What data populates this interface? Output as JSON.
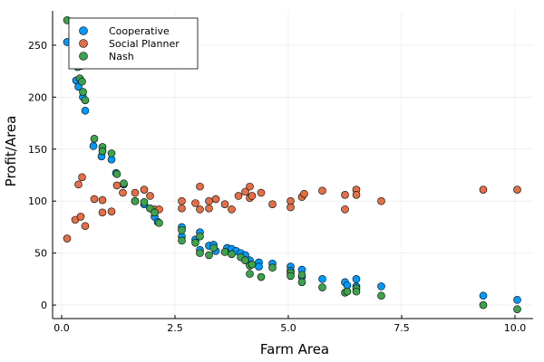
{
  "chart_data": {
    "type": "scatter",
    "title": "",
    "xlabel": "Farm Area",
    "ylabel": "Profit/Area",
    "xlim": [
      -0.2,
      10.4
    ],
    "ylim": [
      -13,
      283
    ],
    "x_ticks": [
      0,
      2.5,
      5,
      7.5,
      10
    ],
    "x_tick_labels": [
      "0.0",
      "2.5",
      "5.0",
      "7.5",
      "10.0"
    ],
    "y_ticks": [
      0,
      50,
      100,
      150,
      200,
      250
    ],
    "y_tick_labels": [
      "0",
      "50",
      "100",
      "150",
      "200",
      "250"
    ],
    "grid": true,
    "legend_position": "top-left",
    "series": [
      {
        "name": "Cooperative",
        "color": "#009AFA",
        "points": [
          [
            0.12,
            253
          ],
          [
            0.32,
            216
          ],
          [
            0.37,
            210
          ],
          [
            0.42,
            230
          ],
          [
            0.47,
            200
          ],
          [
            0.52,
            187
          ],
          [
            0.7,
            153
          ],
          [
            0.88,
            143
          ],
          [
            1.1,
            140
          ],
          [
            1.2,
            127
          ],
          [
            1.37,
            116
          ],
          [
            1.62,
            100
          ],
          [
            1.82,
            97
          ],
          [
            1.95,
            93
          ],
          [
            2.05,
            85
          ],
          [
            2.12,
            80
          ],
          [
            2.65,
            75
          ],
          [
            2.65,
            66
          ],
          [
            2.95,
            63
          ],
          [
            3.05,
            70
          ],
          [
            3.05,
            53
          ],
          [
            3.25,
            57
          ],
          [
            3.35,
            58
          ],
          [
            3.4,
            52
          ],
          [
            3.65,
            55
          ],
          [
            3.75,
            54
          ],
          [
            3.85,
            52
          ],
          [
            3.95,
            50
          ],
          [
            4.05,
            48
          ],
          [
            4.15,
            43
          ],
          [
            4.35,
            41
          ],
          [
            4.35,
            37
          ],
          [
            4.65,
            40
          ],
          [
            5.05,
            37
          ],
          [
            5.05,
            33
          ],
          [
            5.3,
            34
          ],
          [
            5.3,
            27
          ],
          [
            5.75,
            25
          ],
          [
            6.25,
            22
          ],
          [
            6.3,
            19
          ],
          [
            6.5,
            25
          ],
          [
            6.5,
            18
          ],
          [
            7.05,
            18
          ],
          [
            9.3,
            9
          ],
          [
            10.05,
            5
          ]
        ]
      },
      {
        "name": "Social Planner",
        "color": "#E26F46",
        "points": [
          [
            0.12,
            64
          ],
          [
            0.3,
            82
          ],
          [
            0.37,
            116
          ],
          [
            0.42,
            85
          ],
          [
            0.45,
            123
          ],
          [
            0.52,
            76
          ],
          [
            0.72,
            102
          ],
          [
            0.9,
            89
          ],
          [
            0.9,
            101
          ],
          [
            1.1,
            90
          ],
          [
            1.22,
            115
          ],
          [
            1.35,
            108
          ],
          [
            1.62,
            108
          ],
          [
            1.82,
            111
          ],
          [
            1.95,
            105
          ],
          [
            2.05,
            92
          ],
          [
            2.15,
            92
          ],
          [
            2.65,
            100
          ],
          [
            2.65,
            93
          ],
          [
            2.95,
            98
          ],
          [
            3.05,
            114
          ],
          [
            3.05,
            92
          ],
          [
            3.25,
            100
          ],
          [
            3.25,
            93
          ],
          [
            3.4,
            102
          ],
          [
            3.6,
            97
          ],
          [
            3.75,
            92
          ],
          [
            3.9,
            105
          ],
          [
            4.05,
            109
          ],
          [
            4.15,
            103
          ],
          [
            4.15,
            114
          ],
          [
            4.2,
            105
          ],
          [
            4.4,
            108
          ],
          [
            4.65,
            97
          ],
          [
            5.05,
            100
          ],
          [
            5.05,
            94
          ],
          [
            5.3,
            104
          ],
          [
            5.35,
            107
          ],
          [
            5.75,
            110
          ],
          [
            6.25,
            106
          ],
          [
            6.25,
            92
          ],
          [
            6.5,
            111
          ],
          [
            6.5,
            106
          ],
          [
            7.05,
            100
          ],
          [
            9.3,
            111
          ],
          [
            10.05,
            111
          ]
        ]
      },
      {
        "name": "Nash",
        "color": "#3DA44D",
        "points": [
          [
            0.12,
            274
          ],
          [
            0.32,
            240
          ],
          [
            0.35,
            229
          ],
          [
            0.4,
            218
          ],
          [
            0.45,
            215
          ],
          [
            0.47,
            205
          ],
          [
            0.52,
            197
          ],
          [
            0.72,
            160
          ],
          [
            0.9,
            152
          ],
          [
            0.9,
            148
          ],
          [
            1.1,
            146
          ],
          [
            1.22,
            126
          ],
          [
            1.37,
            117
          ],
          [
            1.62,
            100
          ],
          [
            1.82,
            99
          ],
          [
            1.95,
            93
          ],
          [
            2.05,
            89
          ],
          [
            2.15,
            79
          ],
          [
            2.65,
            72
          ],
          [
            2.65,
            62
          ],
          [
            2.95,
            60
          ],
          [
            3.05,
            66
          ],
          [
            3.05,
            50
          ],
          [
            3.25,
            48
          ],
          [
            3.35,
            55
          ],
          [
            3.6,
            51
          ],
          [
            3.75,
            49
          ],
          [
            3.95,
            46
          ],
          [
            4.05,
            43
          ],
          [
            4.15,
            38
          ],
          [
            4.15,
            30
          ],
          [
            4.2,
            39
          ],
          [
            4.4,
            27
          ],
          [
            4.65,
            36
          ],
          [
            5.05,
            31
          ],
          [
            5.05,
            28
          ],
          [
            5.3,
            29
          ],
          [
            5.3,
            22
          ],
          [
            5.75,
            17
          ],
          [
            6.25,
            12
          ],
          [
            6.3,
            13
          ],
          [
            6.5,
            16
          ],
          [
            6.5,
            13
          ],
          [
            7.05,
            9
          ],
          [
            9.3,
            0
          ],
          [
            10.05,
            -4
          ]
        ]
      }
    ]
  }
}
